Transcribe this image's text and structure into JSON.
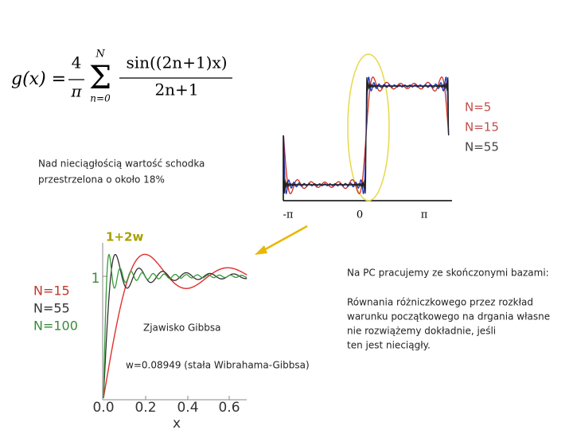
{
  "formula": {
    "lhs": "g(x) =",
    "coef_num": "4",
    "coef_den": "π",
    "sum_top": "N",
    "sum_bottom": "n=0",
    "num": "sin((2n+1)x)",
    "den": "2n+1"
  },
  "top_plot": {
    "legend": [
      "N=5",
      "N=15",
      "N=55"
    ],
    "x_labels": [
      "-π",
      "0",
      "π"
    ]
  },
  "note": [
    "Nad nieciągłością wartość schodka",
    "przestrzelona o około 18%"
  ],
  "bottom_plot": {
    "label_1_2w": "1+2w",
    "legend": [
      "N=15",
      "N=55",
      "N=100"
    ],
    "y_label": "1",
    "x_ticks": [
      "0.0",
      "0.2",
      "0.4",
      "0.6"
    ],
    "x_title": "x",
    "caption": "Zjawisko Gibbsa",
    "w_text": "w=0.08949 (stała Wibrahama-Gibbsa)"
  },
  "right_text": {
    "heading": "Na PC pracujemy ze skończonymi bazami:",
    "lines": [
      "Równania różniczkowego przez rozkład",
      "warunku początkowego na drgania własne",
      "nie rozwiążemy dokładnie, jeśli",
      "ten jest nieciągły."
    ]
  }
}
